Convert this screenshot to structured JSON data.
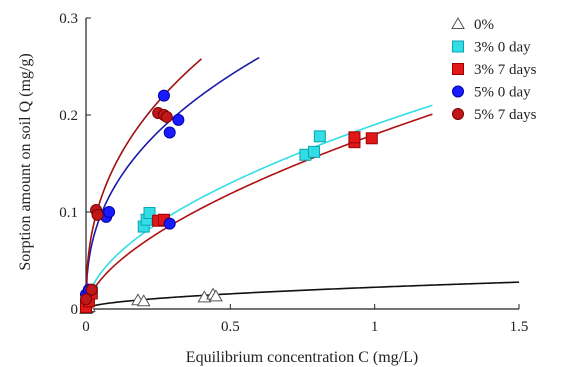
{
  "chart_data": {
    "type": "scatter",
    "title": "",
    "xlabel": "Equilibrium concentration C (mg/L)",
    "ylabel": "Sorption amount on soil Q (mg/g)",
    "xlim": [
      0,
      1.5
    ],
    "ylim": [
      0,
      0.3
    ],
    "x_ticks": [
      "0",
      "0.5",
      "1",
      "1.5"
    ],
    "y_ticks": [
      "0",
      "0.1",
      "0.2",
      "0.3"
    ],
    "grid": false,
    "legend_position": "top-right",
    "series": [
      {
        "name": "0%",
        "marker": "triangle",
        "color": "#ffffff",
        "stroke": "#555555",
        "points": [
          [
            0.0,
            0.0
          ],
          [
            0.005,
            0.001
          ],
          [
            0.01,
            0.002
          ],
          [
            0.18,
            0.009
          ],
          [
            0.2,
            0.008
          ],
          [
            0.41,
            0.012
          ],
          [
            0.44,
            0.015
          ],
          [
            0.45,
            0.013
          ]
        ],
        "fit": {
          "k": 0.0224,
          "n": 0.52,
          "xmax": 1.5,
          "color": "#111111"
        }
      },
      {
        "name": "3% 0 day",
        "marker": "square",
        "color": "#33dde6",
        "stroke": "#0aa3b0",
        "points": [
          [
            0.0,
            0.003
          ],
          [
            0.01,
            0.009
          ],
          [
            0.02,
            0.018
          ],
          [
            0.2,
            0.085
          ],
          [
            0.21,
            0.092
          ],
          [
            0.22,
            0.099
          ],
          [
            0.76,
            0.159
          ],
          [
            0.79,
            0.162
          ],
          [
            0.81,
            0.178
          ]
        ],
        "fit": {
          "k": 0.19,
          "n": 0.55,
          "xmax": 1.2,
          "color": "#33dde6"
        }
      },
      {
        "name": "3% 7 days",
        "marker": "square",
        "color": "#e01818",
        "stroke": "#a00000",
        "points": [
          [
            0.0,
            0.002
          ],
          [
            0.01,
            0.008
          ],
          [
            0.02,
            0.016
          ],
          [
            0.25,
            0.091
          ],
          [
            0.27,
            0.092
          ],
          [
            0.93,
            0.172
          ],
          [
            0.93,
            0.177
          ],
          [
            0.99,
            0.176
          ]
        ],
        "fit": {
          "k": 0.18,
          "n": 0.6,
          "xmax": 1.2,
          "color": "#b01010"
        }
      },
      {
        "name": "5% 0 day",
        "marker": "circle",
        "color": "#1a1aff",
        "stroke": "#0000aa",
        "points": [
          [
            0.0,
            0.015
          ],
          [
            0.01,
            0.02
          ],
          [
            0.07,
            0.095
          ],
          [
            0.08,
            0.1
          ],
          [
            0.27,
            0.22
          ],
          [
            0.29,
            0.182
          ],
          [
            0.32,
            0.195
          ],
          [
            0.29,
            0.088
          ]
        ],
        "fit": {
          "k": 0.318,
          "n": 0.4,
          "xmax": 0.6,
          "color": "#1a1aaa"
        }
      },
      {
        "name": "5% 7 days",
        "marker": "circle",
        "color": "#c01818",
        "stroke": "#7a0000",
        "points": [
          [
            0.0,
            0.01
          ],
          [
            0.02,
            0.02
          ],
          [
            0.035,
            0.102
          ],
          [
            0.04,
            0.097
          ],
          [
            0.25,
            0.202
          ],
          [
            0.27,
            0.2
          ],
          [
            0.28,
            0.198
          ]
        ],
        "fit": {
          "k": 0.372,
          "n": 0.4,
          "xmax": 0.4,
          "color": "#a01010"
        }
      }
    ]
  }
}
